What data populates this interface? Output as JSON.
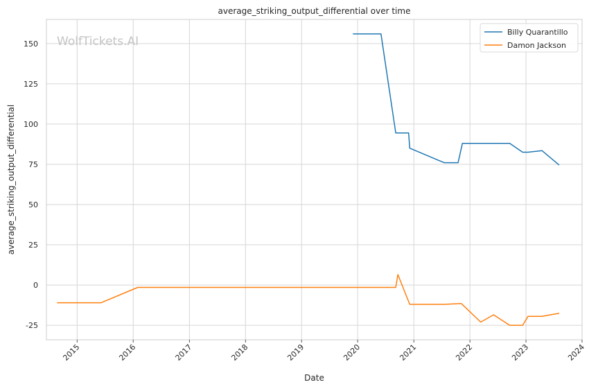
{
  "watermark": "WolfTickets.AI",
  "chart_data": {
    "type": "line",
    "title": "average_striking_output_differential over time",
    "xlabel": "Date",
    "ylabel": "average_striking_output_differential",
    "xlim": [
      "2014-06-15",
      "2024-01-01"
    ],
    "ylim": [
      -34,
      165
    ],
    "xticks": [
      "2015",
      "2016",
      "2017",
      "2018",
      "2019",
      "2020",
      "2021",
      "2022",
      "2023",
      "2024"
    ],
    "yticks": [
      -25,
      0,
      25,
      50,
      75,
      100,
      125,
      150
    ],
    "grid": true,
    "legend_position": "top-right",
    "colors": {
      "Billy Quarantillo": "#1f77b4",
      "Damon Jackson": "#ff7f0e"
    },
    "series": [
      {
        "name": "Billy Quarantillo",
        "x": [
          "2019-12-01",
          "2020-06-01",
          "2020-09-05",
          "2020-11-28",
          "2020-12-05",
          "2021-07-17",
          "2021-10-16",
          "2021-11-13",
          "2022-09-17",
          "2022-12-10",
          "2023-01-14",
          "2023-04-15",
          "2023-08-05"
        ],
        "values": [
          156,
          156,
          94.5,
          94.5,
          85,
          76,
          76,
          88,
          88,
          82.5,
          82.5,
          83.5,
          74.5
        ]
      },
      {
        "name": "Damon Jackson",
        "x": [
          "2014-08-23",
          "2015-06-06",
          "2016-01-30",
          "2020-09-05",
          "2020-09-19",
          "2020-12-05",
          "2021-07-17",
          "2021-11-06",
          "2022-03-12",
          "2022-06-04",
          "2022-09-17",
          "2022-12-10",
          "2023-01-14",
          "2023-04-15",
          "2023-08-05"
        ],
        "values": [
          -11,
          -11,
          -1.5,
          -1.5,
          6.5,
          -12,
          -12,
          -11.5,
          -23,
          -18.5,
          -25,
          -25,
          -19.5,
          -19.5,
          -17.5
        ]
      }
    ]
  }
}
